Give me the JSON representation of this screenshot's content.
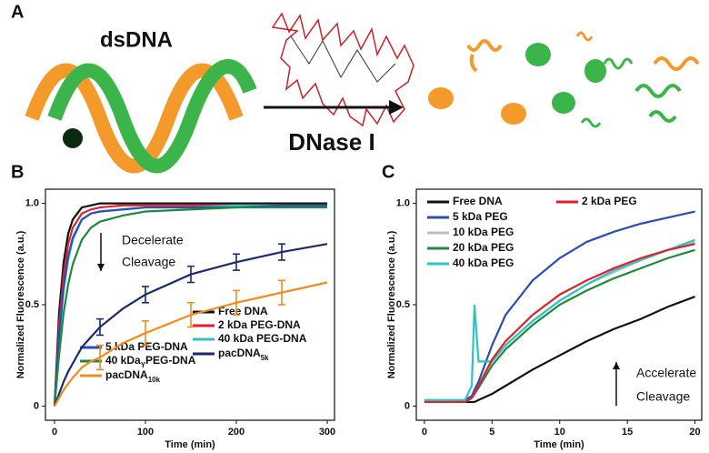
{
  "panel_a": {
    "label": "A",
    "left_label": "dsDNA",
    "arrow_label": "DNase I"
  },
  "chart_data": [
    {
      "type": "line",
      "label": "B",
      "xlabel": "Time (min)",
      "ylabel": "Normalized Fluorescence (a.u.)",
      "xlim": [
        -10,
        308
      ],
      "ylim": [
        -0.07,
        1.07
      ],
      "xticks": [
        0,
        100,
        200,
        300
      ],
      "yticks": [
        0,
        0.5,
        {
          "value": 1.0,
          "label": "1.0"
        }
      ],
      "annotations": [
        "Decelerate",
        "Cleavage"
      ],
      "x": [
        0,
        5,
        10,
        15,
        20,
        30,
        40,
        50,
        75,
        100,
        150,
        200,
        250,
        300
      ],
      "series": [
        {
          "name": "Free DNA",
          "color": "#111111",
          "values": [
            0,
            0.46,
            0.71,
            0.85,
            0.92,
            0.98,
            0.99,
            1,
            1,
            1,
            1,
            1,
            1,
            1
          ]
        },
        {
          "name": "2 kDa PEG-DNA",
          "color": "#e0202a",
          "values": [
            0,
            0.4,
            0.65,
            0.8,
            0.88,
            0.95,
            0.97,
            0.98,
            0.99,
            0.99,
            0.99,
            0.99,
            0.99,
            0.99
          ]
        },
        {
          "name": "40 kDa PEG-DNA",
          "color": "#2ec4c4",
          "values": [
            0,
            0.33,
            0.57,
            0.72,
            0.82,
            0.92,
            0.95,
            0.96,
            0.97,
            0.98,
            0.98,
            0.99,
            0.99,
            0.99
          ]
        },
        {
          "name": "5 kDa PEG-DNA",
          "color": "#2a4fb0",
          "values": [
            0,
            0.35,
            0.59,
            0.74,
            0.83,
            0.92,
            0.95,
            0.96,
            0.97,
            0.98,
            0.98,
            0.98,
            0.99,
            0.99
          ]
        },
        {
          "name": "40 kDa",
          "name_sub": "Y",
          "name_after": "PEG-DNA",
          "color": "#1f8a3a",
          "values": [
            0,
            0.25,
            0.46,
            0.6,
            0.7,
            0.82,
            0.88,
            0.91,
            0.94,
            0.96,
            0.97,
            0.98,
            0.98,
            0.98
          ]
        },
        {
          "name": "pacDNA",
          "name_sub": "5k",
          "color": "#1c2a6e",
          "values": [
            0,
            0.06,
            0.12,
            0.17,
            0.21,
            0.29,
            0.34,
            0.39,
            0.48,
            0.55,
            0.65,
            0.71,
            0.76,
            0.8
          ],
          "errors": [
            null,
            null,
            null,
            null,
            null,
            null,
            null,
            0.04,
            null,
            0.04,
            0.04,
            0.04,
            0.04,
            null
          ]
        },
        {
          "name": "pacDNA",
          "name_sub": "10k",
          "color": "#f08c1e",
          "values": [
            0,
            0.04,
            0.08,
            0.11,
            0.14,
            0.19,
            0.22,
            0.24,
            0.31,
            0.36,
            0.45,
            0.51,
            0.56,
            0.61
          ],
          "errors": [
            null,
            null,
            null,
            null,
            null,
            null,
            null,
            0.06,
            null,
            0.06,
            0.06,
            0.06,
            0.06,
            null
          ]
        }
      ]
    },
    {
      "type": "line",
      "label": "C",
      "xlabel": "Time (min)",
      "ylabel": "Normalized Fluorescence (a.u.)",
      "xlim": [
        -0.6,
        20.5
      ],
      "ylim": [
        -0.07,
        1.07
      ],
      "xticks": [
        0,
        5,
        10,
        15,
        20
      ],
      "yticks": [
        0,
        0.5,
        {
          "value": 1.0,
          "label": "1.0"
        }
      ],
      "annotations": [
        "Accelerate",
        "Cleavage"
      ],
      "x": [
        0,
        1,
        2,
        3,
        3.5,
        3.7,
        4,
        5,
        6,
        8,
        10,
        12,
        14,
        16,
        18,
        20
      ],
      "series": [
        {
          "name": "Free DNA",
          "color": "#111111",
          "values": [
            0.02,
            0.02,
            0.02,
            0.02,
            0.02,
            0.02,
            0.03,
            0.06,
            0.1,
            0.18,
            0.25,
            0.32,
            0.38,
            0.43,
            0.49,
            0.54
          ]
        },
        {
          "name": "5 kDa PEG",
          "color": "#2a4fb0",
          "values": [
            0.02,
            0.02,
            0.02,
            0.03,
            0.05,
            0.08,
            0.12,
            0.3,
            0.45,
            0.62,
            0.73,
            0.81,
            0.86,
            0.9,
            0.93,
            0.96
          ]
        },
        {
          "name": "10 kDa PEG",
          "color": "#bdbdbd",
          "values": [
            0.02,
            0.02,
            0.02,
            0.02,
            0.04,
            0.06,
            0.1,
            0.22,
            0.3,
            0.42,
            0.52,
            0.6,
            0.66,
            0.72,
            0.77,
            0.81
          ]
        },
        {
          "name": "20 kDa PEG",
          "color": "#1f8a3a",
          "values": [
            0.02,
            0.02,
            0.02,
            0.02,
            0.04,
            0.06,
            0.09,
            0.2,
            0.28,
            0.4,
            0.5,
            0.57,
            0.63,
            0.68,
            0.73,
            0.77
          ]
        },
        {
          "name": "40 kDa PEG",
          "color": "#2ec4c4",
          "values": [
            0.03,
            0.03,
            0.03,
            0.03,
            0.1,
            0.5,
            0.22,
            0.22,
            0.3,
            0.42,
            0.52,
            0.6,
            0.67,
            0.72,
            0.77,
            0.82
          ]
        },
        {
          "name": "2 kDa PEG",
          "color": "#e0202a",
          "values": [
            0.02,
            0.02,
            0.02,
            0.02,
            0.04,
            0.06,
            0.1,
            0.23,
            0.32,
            0.45,
            0.55,
            0.62,
            0.68,
            0.73,
            0.77,
            0.8
          ]
        }
      ]
    }
  ]
}
